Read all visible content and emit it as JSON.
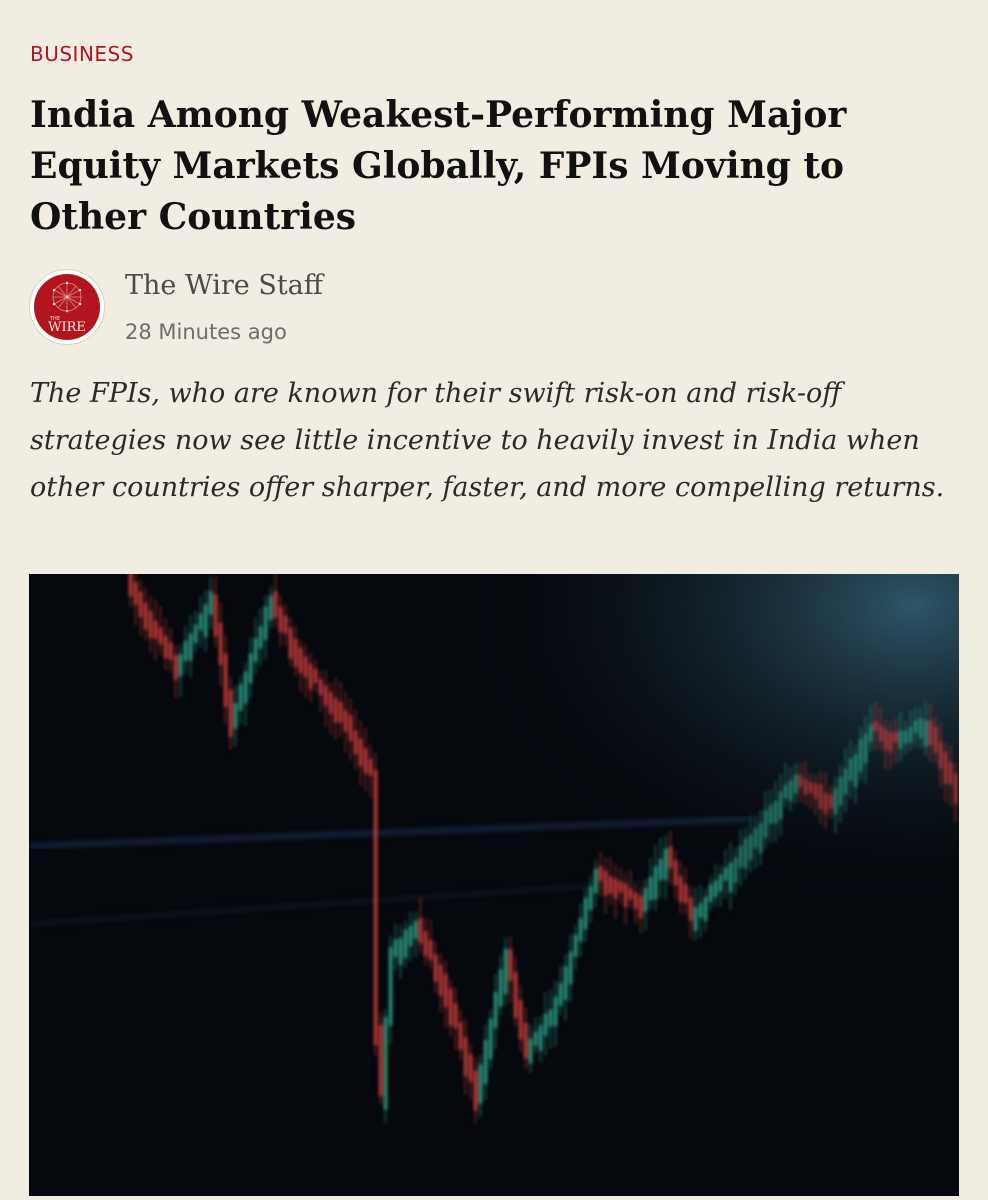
{
  "article": {
    "category": "BUSINESS",
    "headline": "India Among Weakest-Performing Major Equity Markets Globally, FPIs Moving to Other Countries",
    "author": "The Wire Staff",
    "time": "28 Minutes ago",
    "standfirst": "The FPIs, who are known for their swift risk-on and risk-off strategies now see little incentive to heavily invest in India when other countries offer sharper, faster, and more compelling returns.",
    "avatar_logo_text": "THE WIRE"
  },
  "colors": {
    "background": "#f2ede2",
    "category": "#b3151d",
    "logo_red": "#b3151d",
    "candle_up": "#2fae8f",
    "candle_down": "#e0413f"
  },
  "icons": {
    "avatar": "the-wire-logo"
  }
}
